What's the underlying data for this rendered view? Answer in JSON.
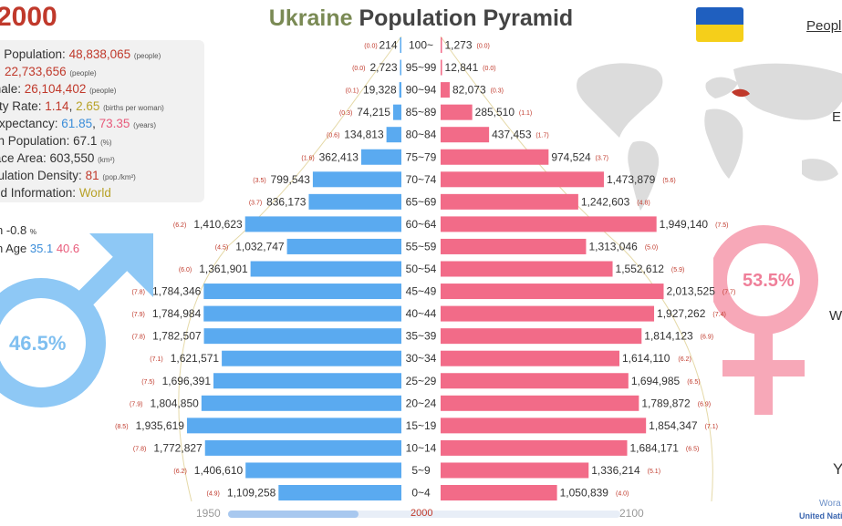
{
  "header": {
    "year": "2000",
    "title_country": "Ukraine",
    "title_rest": "Population Pyramid",
    "people_link": "Peopl",
    "flag_colors": [
      "#1f5fbf",
      "#f5cf1a"
    ]
  },
  "stats": {
    "total_label": "al Population: ",
    "total_value": "48,838,065",
    "total_unit": "(people)",
    "male_label": "e: ",
    "male_value": "22,733,656",
    "male_unit": "(people)",
    "female_label": "male: ",
    "female_value": "26,104,402",
    "female_unit": "(people)",
    "fert_label": "ility Rate: ",
    "fert_value1": "1.14",
    "fert_sep": ", ",
    "fert_value2": "2.65",
    "fert_unit": "(births per woman)",
    "life_label": " Expectancy: ",
    "life_male": "61.85",
    "life_sep": ", ",
    "life_female": "73.35",
    "life_unit": "(years)",
    "urban_label": "an Population: ",
    "urban_value": "67.1",
    "urban_unit": "(%)",
    "area_label": "face Area: ",
    "area_value": "603,550",
    "area_unit": "(km²)",
    "density_label": "pulation Density: ",
    "density_value": "81",
    "density_unit": "(pop./km²)",
    "detail_label": "led Information: ",
    "detail_value": "World"
  },
  "notes": {
    "growth_label": "n  -0.8",
    "growth_unit": "%",
    "median_label": "n Age ",
    "median_male": "35.1",
    "median_female": "40.6"
  },
  "gender": {
    "male_pct": "46.5%",
    "female_pct": "53.5%"
  },
  "side_letters": {
    "e": "E",
    "w": "W",
    "y": "Y"
  },
  "timeline": {
    "start": "1950",
    "current": "2000",
    "end": "2100",
    "progress": 0.333
  },
  "source": {
    "line1": "Wora",
    "line2": "United Nati"
  },
  "colors": {
    "male": "#5aaaf0",
    "female": "#f26b88",
    "accent": "#c0392b"
  },
  "chart_data": {
    "type": "bar",
    "title": "Ukraine Population Pyramid",
    "categories": [
      "100~",
      "95~99",
      "90~94",
      "85~89",
      "80~84",
      "75~79",
      "70~74",
      "65~69",
      "60~64",
      "55~59",
      "50~54",
      "45~49",
      "40~44",
      "35~39",
      "30~34",
      "25~29",
      "20~24",
      "15~19",
      "10~14",
      "5~9",
      "0~4"
    ],
    "series": [
      {
        "name": "male",
        "values": [
          214,
          2723,
          19328,
          74215,
          134813,
          362413,
          799543,
          836173,
          1410623,
          1032747,
          1361901,
          1784346,
          1784984,
          1782507,
          1621571,
          1696391,
          1804850,
          1935619,
          1772827,
          1406610,
          1109258
        ],
        "labels": [
          "214",
          "2,723",
          "19,328",
          "74,215",
          "134,813",
          "362,413",
          "799,543",
          "836,173",
          "1,410,623",
          "1,032,747",
          "1,361,901",
          "1,784,346",
          "1,784,984",
          "1,782,507",
          "1,621,571",
          "1,696,391",
          "1,804,850",
          "1,935,619",
          "1,772,827",
          "1,406,610",
          "1,109,258"
        ],
        "pct": [
          "(0.0)",
          "(0.0)",
          "(0.1)",
          "(0.3)",
          "(0.6)",
          "(1.6)",
          "(3.5)",
          "(3.7)",
          "(6.2)",
          "(4.5)",
          "(6.0)",
          "(7.8)",
          "(7.9)",
          "(7.8)",
          "(7.1)",
          "(7.5)",
          "(7.9)",
          "(8.5)",
          "(7.8)",
          "(6.2)",
          "(4.9)"
        ]
      },
      {
        "name": "female",
        "values": [
          1273,
          12841,
          82073,
          285510,
          437453,
          974524,
          1473879,
          1242603,
          1949140,
          1313046,
          1552612,
          2013525,
          1927262,
          1814123,
          1614110,
          1694985,
          1789872,
          1854347,
          1684171,
          1336214,
          1050839
        ],
        "labels": [
          "1,273",
          "12,841",
          "82,073",
          "285,510",
          "437,453",
          "974,524",
          "1,473,879",
          "1,242,603",
          "1,949,140",
          "1,313,046",
          "1,552,612",
          "2,013,525",
          "1,927,262",
          "1,814,123",
          "1,614,110",
          "1,694,985",
          "1,789,872",
          "1,854,347",
          "1,684,171",
          "1,336,214",
          "1,050,839"
        ],
        "pct": [
          "(0.0)",
          "(0.0)",
          "(0.3)",
          "(1.1)",
          "(1.7)",
          "(3.7)",
          "(5.6)",
          "(4.8)",
          "(7.5)",
          "(5.0)",
          "(5.9)",
          "(7.7)",
          "(7.4)",
          "(6.9)",
          "(6.2)",
          "(6.5)",
          "(6.9)",
          "(7.1)",
          "(6.5)",
          "(5.1)",
          "(4.0)"
        ]
      }
    ],
    "xlim": [
      0,
      2100000
    ]
  }
}
